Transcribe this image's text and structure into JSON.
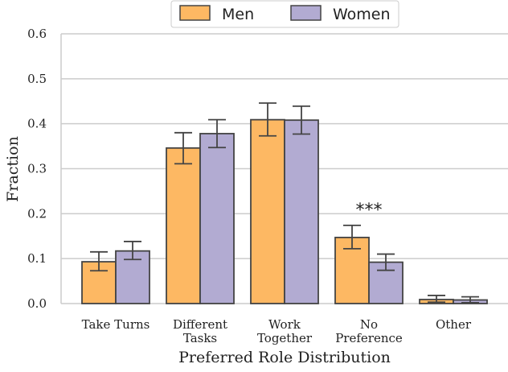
{
  "chart_data": {
    "type": "bar",
    "categories": [
      [
        "Take Turns"
      ],
      [
        "Different",
        "Tasks"
      ],
      [
        "Work",
        "Together"
      ],
      [
        "No",
        "Preference"
      ],
      [
        "Other"
      ]
    ],
    "series": [
      {
        "name": "Men",
        "color": "#FDB863",
        "values": [
          0.093,
          0.346,
          0.409,
          0.147,
          0.009
        ],
        "error_low": [
          0.073,
          0.311,
          0.373,
          0.122,
          0.003
        ],
        "error_high": [
          0.115,
          0.38,
          0.446,
          0.174,
          0.018
        ]
      },
      {
        "name": "Women",
        "color": "#B2ABD2",
        "values": [
          0.117,
          0.378,
          0.408,
          0.092,
          0.008
        ],
        "error_low": [
          0.098,
          0.347,
          0.377,
          0.074,
          0.002
        ],
        "error_high": [
          0.138,
          0.409,
          0.439,
          0.11,
          0.015
        ]
      }
    ],
    "xlabel": "Preferred Role Distribution",
    "ylabel": "Fraction",
    "ylim": [
      0,
      0.6
    ],
    "yticks": [
      "0.0",
      "0.1",
      "0.2",
      "0.3",
      "0.4",
      "0.5",
      "0.6"
    ],
    "grid": "horizontal",
    "legend_position": "top-center",
    "annotations": [
      {
        "text": "***",
        "category_index": 3
      }
    ]
  }
}
